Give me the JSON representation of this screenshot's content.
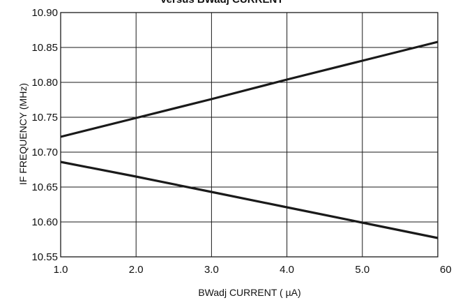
{
  "chart_data": {
    "type": "line",
    "title": "",
    "xlabel": "BWadj CURRENT ( µA)",
    "ylabel": "IF FREQUENCY (MHz)",
    "xlim": [
      1.0,
      6.0
    ],
    "ylim": [
      10.55,
      10.9
    ],
    "x_ticks": [
      "1.0",
      "2.0",
      "3.0",
      "4.0",
      "5.0",
      "60"
    ],
    "y_ticks": [
      "10.55",
      "10.60",
      "10.65",
      "10.70",
      "10.75",
      "10.80",
      "10.85",
      "10.90"
    ],
    "grid": true,
    "legend": "none",
    "series": [
      {
        "x": [
          1.0,
          2.0,
          3.0,
          4.0,
          5.0,
          6.0
        ],
        "values": [
          10.722,
          10.749,
          10.776,
          10.804,
          10.831,
          10.858
        ]
      },
      {
        "x": [
          1.0,
          2.0,
          3.0,
          4.0,
          5.0,
          6.0
        ],
        "values": [
          10.686,
          10.665,
          10.643,
          10.621,
          10.599,
          10.577
        ]
      }
    ],
    "colors": {
      "line": "#1a1a1a",
      "grid": "#1a1a1a"
    }
  }
}
